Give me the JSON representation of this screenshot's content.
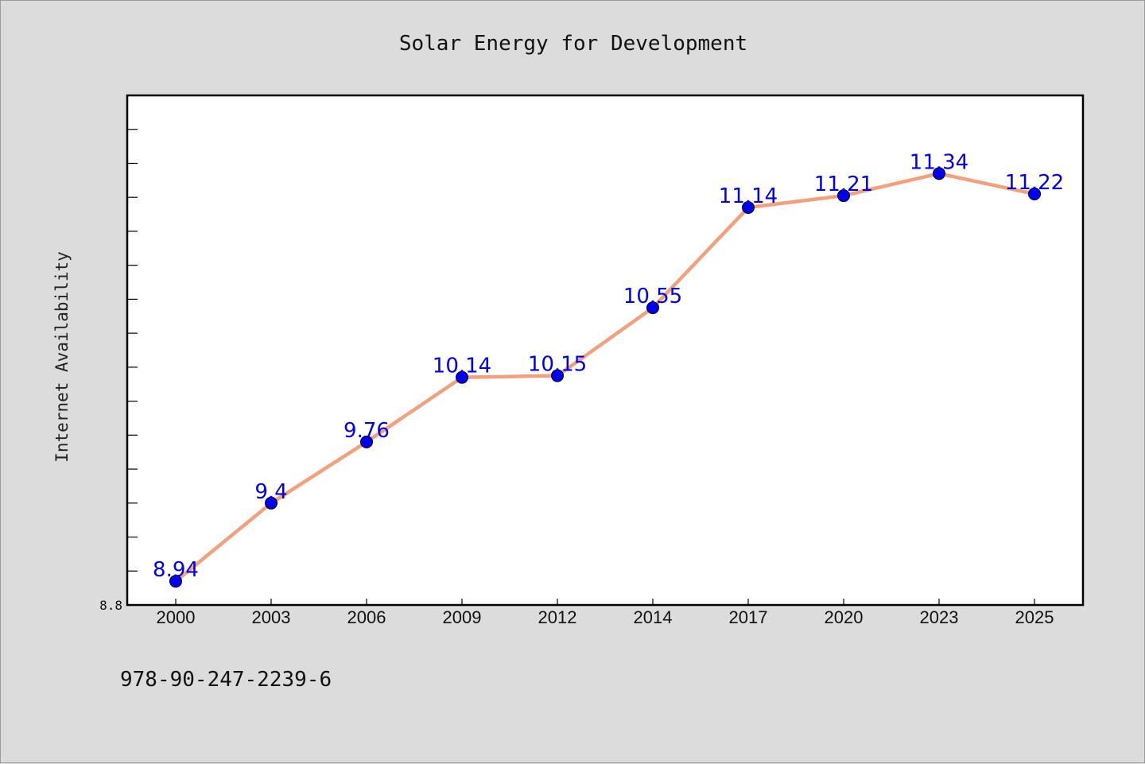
{
  "chart_data": {
    "type": "line",
    "title": "Solar Energy for Development",
    "xlabel": "",
    "ylabel": "Internet Availability",
    "categories": [
      "2000",
      "2003",
      "2006",
      "2009",
      "2012",
      "2014",
      "2017",
      "2020",
      "2023",
      "2025"
    ],
    "values": [
      8.94,
      9.4,
      9.76,
      10.14,
      10.15,
      10.55,
      11.14,
      11.21,
      11.34,
      11.22
    ],
    "data_labels": [
      "8.94",
      "9.4",
      "9.76",
      "10.14",
      "10.15",
      "10.55",
      "11.14",
      "11.21",
      "11.34",
      "11.22"
    ],
    "y_tick_label": "8.8",
    "ylim": [
      8.8,
      11.8
    ],
    "grid": false,
    "legend": "none",
    "line_color": "#f4a07c",
    "marker_color": "#0000ee",
    "label_color": "#0000ee"
  },
  "footer_text": "978-90-247-2239-6"
}
